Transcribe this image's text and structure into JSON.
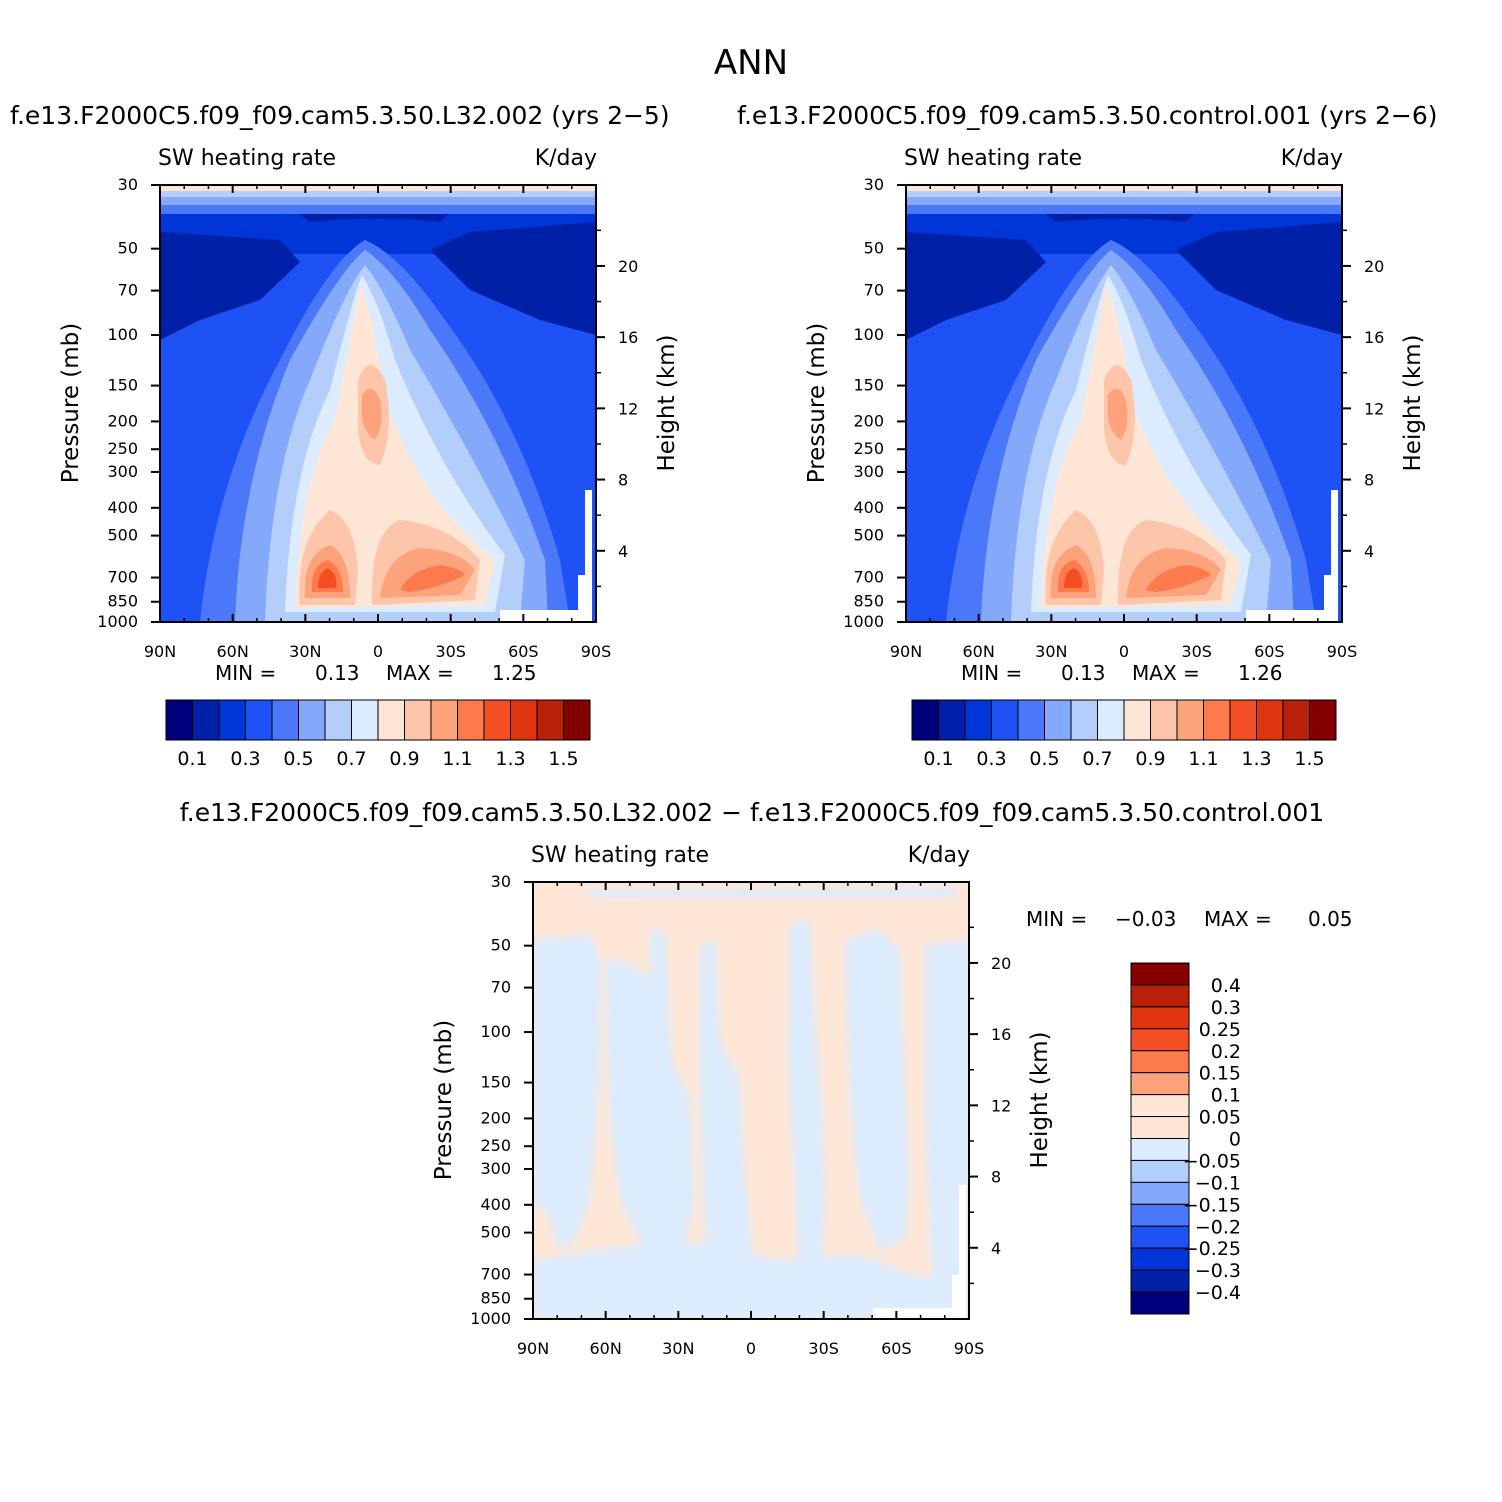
{
  "page": {
    "title": "ANN",
    "diff_title": "f.e13.F2000C5.f09_f09.cam5.3.50.L32.002 − f.e13.F2000C5.f09_f09.cam5.3.50.control.001"
  },
  "chart_data": [
    {
      "type": "contour",
      "case": "f.e13.F2000C5.f09_f09.cam5.3.50.L32.002 (yrs 2−5)",
      "variable": "SW heating rate",
      "units": "K/day",
      "xlabel": "",
      "ylabel": "Pressure (mb)",
      "ylabel_right": "Height (km)",
      "x_ticks": [
        "90N",
        "60N",
        "30N",
        "0",
        "30S",
        "60S",
        "90S"
      ],
      "y_ticks": [
        "30",
        "50",
        "70",
        "100",
        "150",
        "200",
        "250",
        "300",
        "400",
        "500",
        "700",
        "850",
        "1000"
      ],
      "y_scale": "log",
      "ylim": [
        1000,
        30
      ],
      "height_ticks": [
        "20",
        "16",
        "12",
        "8",
        "4"
      ],
      "min_label": "MIN =",
      "min_value": "0.13",
      "max_label": "MAX =",
      "max_value": "1.25",
      "min": 0.13,
      "max": 1.25,
      "levels": [
        "0.1",
        "0.3",
        "0.5",
        "0.7",
        "0.9",
        "1.1",
        "1.3",
        "1.5"
      ],
      "colorbar_colors": [
        "#00007c",
        "#0020a8",
        "#0035d8",
        "#1e52f4",
        "#4a78f8",
        "#84a8fa",
        "#b4cefc",
        "#dcebfd",
        "#fde6d6",
        "#fdc6aa",
        "#fca37c",
        "#fc7a4c",
        "#f44e24",
        "#de3410",
        "#b8200a",
        "#840000"
      ]
    },
    {
      "type": "contour",
      "case": "f.e13.F2000C5.f09_f09.cam5.3.50.control.001 (yrs 2−6)",
      "variable": "SW heating rate",
      "units": "K/day",
      "xlabel": "",
      "ylabel": "Pressure (mb)",
      "ylabel_right": "Height (km)",
      "x_ticks": [
        "90N",
        "60N",
        "30N",
        "0",
        "30S",
        "60S",
        "90S"
      ],
      "y_ticks": [
        "30",
        "50",
        "70",
        "100",
        "150",
        "200",
        "250",
        "300",
        "400",
        "500",
        "700",
        "850",
        "1000"
      ],
      "y_scale": "log",
      "ylim": [
        1000,
        30
      ],
      "height_ticks": [
        "20",
        "16",
        "12",
        "8",
        "4"
      ],
      "min_label": "MIN =",
      "min_value": "0.13",
      "max_label": "MAX =",
      "max_value": "1.26",
      "min": 0.13,
      "max": 1.26,
      "levels": [
        "0.1",
        "0.3",
        "0.5",
        "0.7",
        "0.9",
        "1.1",
        "1.3",
        "1.5"
      ],
      "colorbar_colors": [
        "#00007c",
        "#0020a8",
        "#0035d8",
        "#1e52f4",
        "#4a78f8",
        "#84a8fa",
        "#b4cefc",
        "#dcebfd",
        "#fde6d6",
        "#fdc6aa",
        "#fca37c",
        "#fc7a4c",
        "#f44e24",
        "#de3410",
        "#b8200a",
        "#840000"
      ]
    },
    {
      "type": "contour",
      "variable": "SW heating rate",
      "units": "K/day",
      "xlabel": "",
      "ylabel": "Pressure (mb)",
      "ylabel_right": "Height (km)",
      "x_ticks": [
        "90N",
        "60N",
        "30N",
        "0",
        "30S",
        "60S",
        "90S"
      ],
      "y_ticks": [
        "30",
        "50",
        "70",
        "100",
        "150",
        "200",
        "250",
        "300",
        "400",
        "500",
        "700",
        "850",
        "1000"
      ],
      "y_scale": "log",
      "ylim": [
        1000,
        30
      ],
      "height_ticks": [
        "20",
        "16",
        "12",
        "8",
        "4"
      ],
      "min_label": "MIN =",
      "min_value": "−0.03",
      "max_label": "MAX =",
      "max_value": "0.05",
      "min": -0.03,
      "max": 0.05,
      "levels": [
        "0.4",
        "0.3",
        "0.25",
        "0.2",
        "0.15",
        "0.1",
        "0.05",
        "0",
        "−0.05",
        "−0.1",
        "−0.15",
        "−0.2",
        "−0.25",
        "−0.3",
        "−0.4"
      ],
      "colorbar_colors": [
        "#840000",
        "#b8200a",
        "#de3410",
        "#f44e24",
        "#fc7a4c",
        "#fca37c",
        "#fde6d6",
        "#fde6d6",
        "#dcebfd",
        "#b4cefc",
        "#84a8fa",
        "#4a78f8",
        "#1e52f4",
        "#0035d8",
        "#0020a8",
        "#00007c"
      ]
    }
  ]
}
